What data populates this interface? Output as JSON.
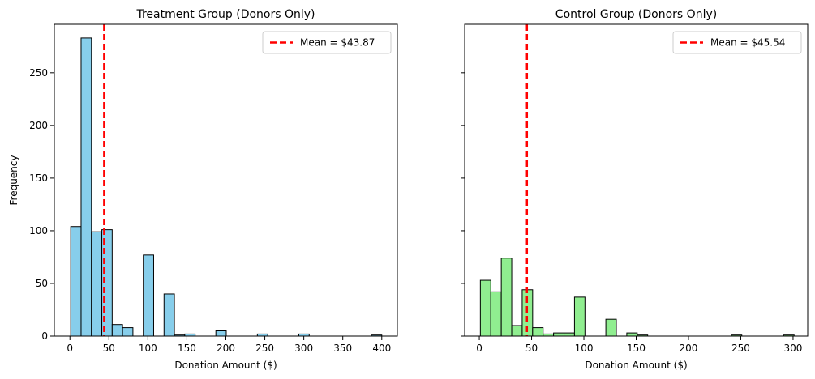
{
  "chart_data": [
    {
      "type": "bar",
      "title": "Treatment Group (Donors Only)",
      "xlabel": "Donation Amount ($)",
      "ylabel": "Frequency",
      "xlim": [
        -20,
        420
      ],
      "ylim": [
        0,
        296
      ],
      "xticks": [
        0,
        50,
        100,
        150,
        200,
        250,
        300,
        350,
        400
      ],
      "yticks": [
        0,
        50,
        100,
        150,
        200,
        250
      ],
      "bar_color": "#87ceeb",
      "edge_color": "#000000",
      "bin_width": 13.3,
      "bins": [
        {
          "x0": 1.0,
          "count": 104
        },
        {
          "x0": 14.3,
          "count": 283
        },
        {
          "x0": 27.6,
          "count": 99
        },
        {
          "x0": 40.9,
          "count": 101
        },
        {
          "x0": 54.2,
          "count": 11
        },
        {
          "x0": 67.5,
          "count": 8
        },
        {
          "x0": 94.1,
          "count": 77
        },
        {
          "x0": 120.7,
          "count": 40
        },
        {
          "x0": 134.0,
          "count": 1
        },
        {
          "x0": 147.3,
          "count": 2
        },
        {
          "x0": 187.2,
          "count": 5
        },
        {
          "x0": 240.4,
          "count": 2
        },
        {
          "x0": 293.6,
          "count": 2
        },
        {
          "x0": 386.7,
          "count": 1
        }
      ],
      "mean_line": {
        "value": 43.87,
        "label": "Mean = $43.87",
        "color": "#ff0000"
      },
      "legend_position": "top-right"
    },
    {
      "type": "bar",
      "title": "Control Group (Donors Only)",
      "xlabel": "Donation Amount ($)",
      "ylabel": "",
      "xlim": [
        -14,
        314
      ],
      "ylim": [
        0,
        296
      ],
      "xticks": [
        0,
        50,
        100,
        150,
        200,
        250,
        300
      ],
      "yticks": [
        0,
        50,
        100,
        150,
        200,
        250
      ],
      "bar_color": "#90ee90",
      "edge_color": "#000000",
      "bin_width": 10.0,
      "bins": [
        {
          "x0": 1.0,
          "count": 53
        },
        {
          "x0": 11.0,
          "count": 42
        },
        {
          "x0": 21.0,
          "count": 74
        },
        {
          "x0": 31.0,
          "count": 10
        },
        {
          "x0": 41.0,
          "count": 44
        },
        {
          "x0": 51.0,
          "count": 8
        },
        {
          "x0": 61.0,
          "count": 2
        },
        {
          "x0": 71.0,
          "count": 3
        },
        {
          "x0": 81.0,
          "count": 3
        },
        {
          "x0": 91.0,
          "count": 37
        },
        {
          "x0": 121.0,
          "count": 16
        },
        {
          "x0": 141.0,
          "count": 3
        },
        {
          "x0": 151.0,
          "count": 1
        },
        {
          "x0": 241.0,
          "count": 1
        },
        {
          "x0": 291.0,
          "count": 1
        }
      ],
      "mean_line": {
        "value": 45.54,
        "label": "Mean = $45.54",
        "color": "#ff0000"
      },
      "legend_position": "top-right"
    }
  ]
}
